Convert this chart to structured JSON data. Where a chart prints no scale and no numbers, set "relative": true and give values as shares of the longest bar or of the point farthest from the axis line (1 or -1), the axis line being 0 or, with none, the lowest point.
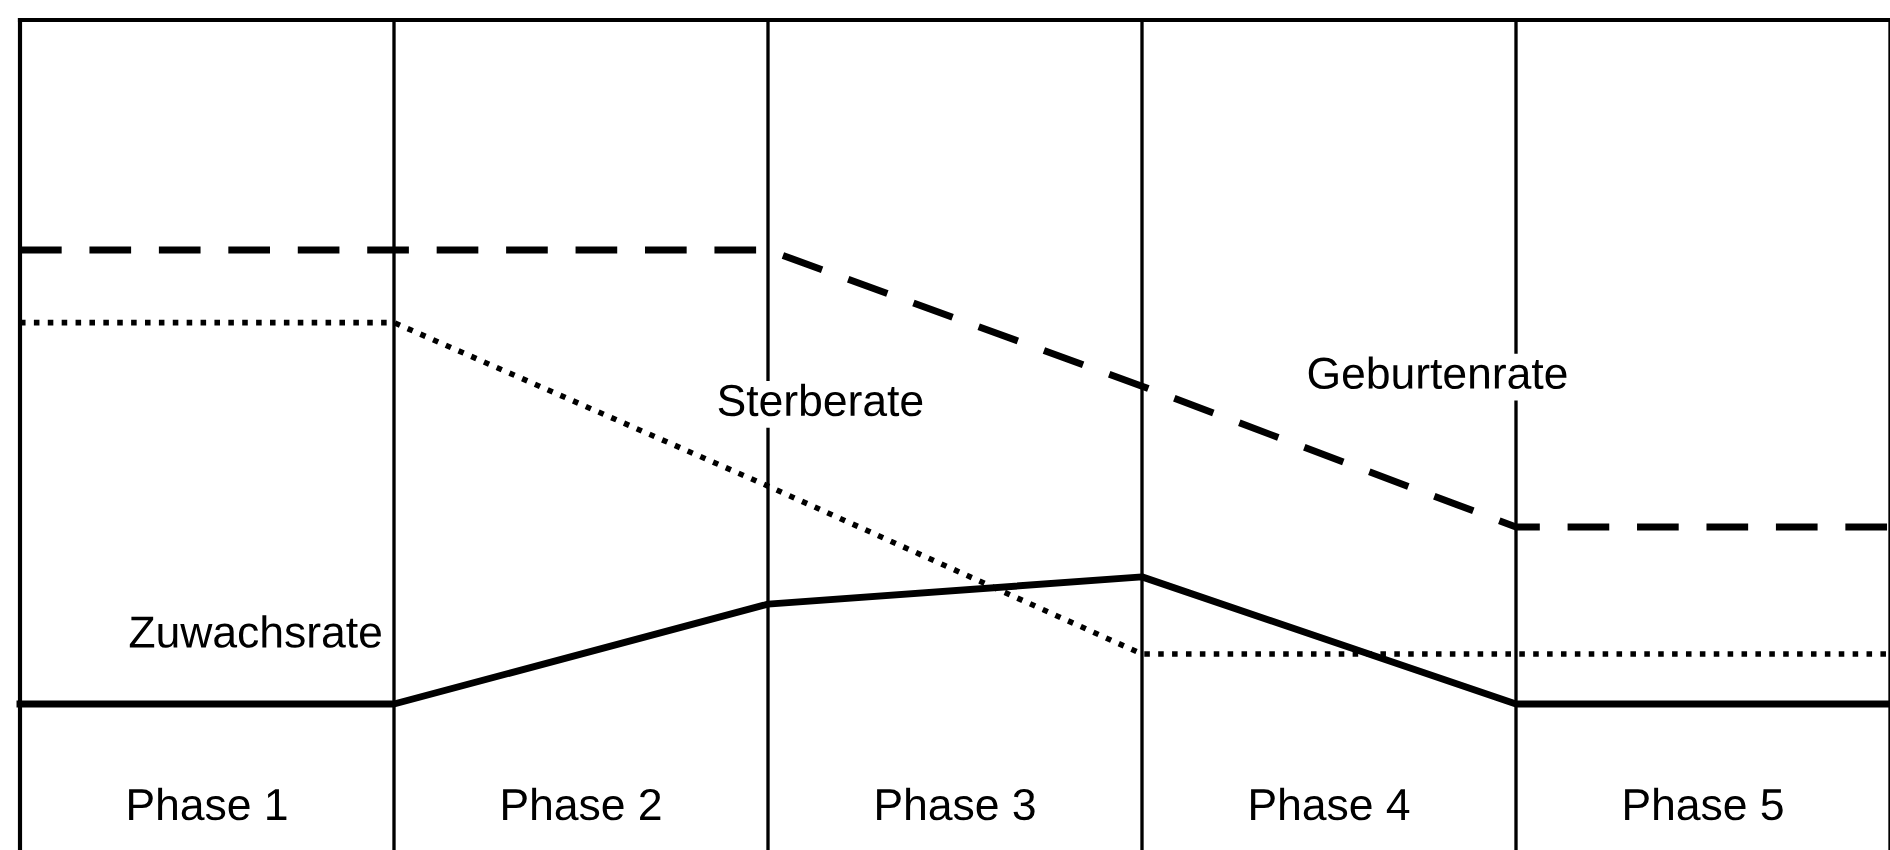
{
  "chart_data": {
    "type": "line",
    "relative": true,
    "categories": [
      null,
      null,
      null,
      null,
      null,
      null
    ],
    "series": [
      {
        "name": "Geburtenrate",
        "color": "#000000",
        "line_style": "dashed",
        "values": [
          1,
          1,
          1,
          0.7,
          0.39,
          0.39
        ]
      },
      {
        "name": "Sterberate",
        "color": "#000000",
        "line_style": "dotted",
        "values": [
          0.84,
          0.84,
          0.48,
          0.11,
          0.11,
          0.11
        ]
      },
      {
        "name": "Zuwachsrate",
        "color": "#000000",
        "line_style": "solid",
        "values": [
          0,
          0,
          0.22,
          0.28,
          0,
          0
        ]
      }
    ],
    "annotations": [
      "Phase 1",
      "Phase 2",
      "Phase 3",
      "Phase 4",
      "Phase 5"
    ],
    "grid": "x",
    "legend": false,
    "marker": "none"
  }
}
